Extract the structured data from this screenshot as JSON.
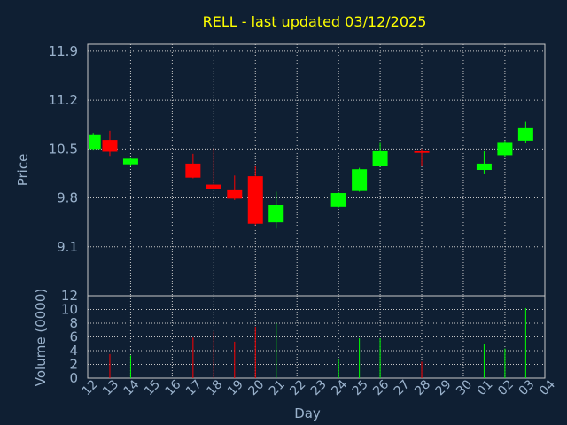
{
  "chart_data": {
    "type": "candlestick",
    "title": "RELL - last updated 03/12/2025",
    "xlabel": "Day",
    "price_panel": {
      "ylabel": "Price",
      "yticks": [
        "11.9",
        "11.2",
        "10.5",
        "9.8",
        "9.1"
      ],
      "ylim": [
        8.4,
        12.0
      ]
    },
    "volume_panel": {
      "ylabel": "Volume (0000)",
      "yticks": [
        "0",
        "2",
        "4",
        "6",
        "8",
        "10",
        "12"
      ],
      "ylim": [
        0,
        12
      ]
    },
    "x_ticks": [
      "12",
      "13",
      "14",
      "15",
      "16",
      "17",
      "18",
      "19",
      "20",
      "21",
      "22",
      "23",
      "24",
      "25",
      "26",
      "27",
      "28",
      "29",
      "30",
      "01",
      "02",
      "03",
      "04"
    ],
    "candles": [
      {
        "x": 0.2,
        "open": 10.5,
        "close": 10.71,
        "high": 10.73,
        "low": 10.49,
        "volume": 0
      },
      {
        "x": 1,
        "open": 10.63,
        "close": 10.46,
        "high": 10.76,
        "low": 10.4,
        "volume": 3.5
      },
      {
        "x": 2,
        "open": 10.28,
        "close": 10.36,
        "high": 10.38,
        "low": 10.26,
        "volume": 3.3
      },
      {
        "x": 5,
        "open": 10.29,
        "close": 10.09,
        "high": 10.43,
        "low": 10.08,
        "volume": 5.9
      },
      {
        "x": 6,
        "open": 9.99,
        "close": 9.93,
        "high": 10.51,
        "low": 9.92,
        "volume": 6.8
      },
      {
        "x": 7,
        "open": 9.91,
        "close": 9.79,
        "high": 10.12,
        "low": 9.77,
        "volume": 5.3
      },
      {
        "x": 8,
        "open": 10.11,
        "close": 9.43,
        "high": 10.25,
        "low": 9.41,
        "volume": 7.5
      },
      {
        "x": 9,
        "open": 9.45,
        "close": 9.7,
        "high": 9.89,
        "low": 9.36,
        "volume": 8.0
      },
      {
        "x": 12,
        "open": 9.67,
        "close": 9.87,
        "high": 9.88,
        "low": 9.66,
        "volume": 2.8
      },
      {
        "x": 13,
        "open": 9.9,
        "close": 10.21,
        "high": 10.23,
        "low": 9.89,
        "volume": 5.8
      },
      {
        "x": 14,
        "open": 10.26,
        "close": 10.48,
        "high": 10.6,
        "low": 10.25,
        "volume": 5.8
      },
      {
        "x": 16,
        "open": 10.47,
        "close": 10.45,
        "high": 10.5,
        "low": 10.26,
        "volume": 2.4
      },
      {
        "x": 19,
        "open": 10.2,
        "close": 10.29,
        "high": 10.47,
        "low": 10.15,
        "volume": 4.9
      },
      {
        "x": 20,
        "open": 10.41,
        "close": 10.6,
        "high": 10.62,
        "low": 10.39,
        "volume": 4.3
      },
      {
        "x": 21,
        "open": 10.62,
        "close": 10.81,
        "high": 10.89,
        "low": 10.58,
        "volume": 10.2
      }
    ],
    "colors": {
      "background": "#0f1f33",
      "up": "#00ff00",
      "down": "#ff0000",
      "grid": "#c8c8c8",
      "axis_text": "#9ab2cc",
      "title": "#ffff00"
    },
    "grid": true
  }
}
